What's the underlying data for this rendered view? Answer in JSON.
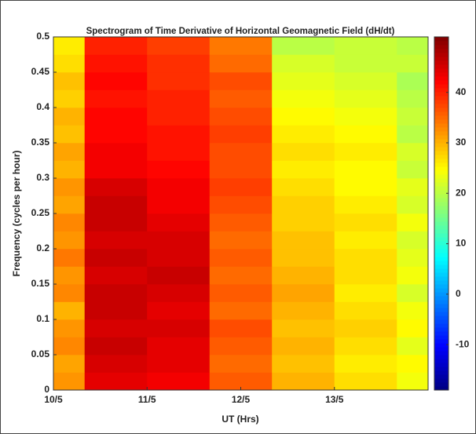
{
  "chart_data": {
    "type": "heatmap",
    "title": "Spectrogram of Time Derivative of Horizontal Geomagnetic Field (dH/dt)",
    "xlabel": "UT (Hrs)",
    "ylabel": "Frequency (cycles per hour)",
    "x_edges": [
      0,
      0.333,
      1,
      1.667,
      2.333,
      3,
      3.667,
      4
    ],
    "y_edges": [
      0,
      0.025,
      0.05,
      0.075,
      0.1,
      0.125,
      0.15,
      0.175,
      0.2,
      0.225,
      0.25,
      0.275,
      0.3,
      0.325,
      0.35,
      0.375,
      0.4,
      0.425,
      0.45,
      0.475,
      0.5
    ],
    "z": [
      [
        32,
        44,
        43,
        36,
        30,
        27,
        24
      ],
      [
        31,
        45,
        44,
        35,
        29,
        26,
        25
      ],
      [
        33,
        46,
        44,
        36,
        30,
        27,
        23
      ],
      [
        32,
        45,
        45,
        37,
        29,
        28,
        25
      ],
      [
        30,
        46,
        44,
        35,
        30,
        27,
        24
      ],
      [
        33,
        46,
        45,
        36,
        31,
        26,
        22
      ],
      [
        32,
        45,
        46,
        35,
        30,
        27,
        24
      ],
      [
        34,
        46,
        45,
        36,
        29,
        27,
        23
      ],
      [
        32,
        45,
        45,
        35,
        29,
        26,
        22
      ],
      [
        33,
        46,
        44,
        36,
        28,
        27,
        24
      ],
      [
        31,
        46,
        43,
        37,
        28,
        26,
        22
      ],
      [
        32,
        45,
        43,
        38,
        27,
        25,
        23
      ],
      [
        30,
        43,
        42,
        37,
        26,
        25,
        21
      ],
      [
        31,
        43,
        41,
        37,
        27,
        26,
        22
      ],
      [
        29,
        42,
        41,
        38,
        26,
        25,
        20
      ],
      [
        30,
        42,
        40,
        37,
        25,
        24,
        21
      ],
      [
        28,
        41,
        40,
        36,
        24,
        23,
        20
      ],
      [
        29,
        42,
        39,
        37,
        23,
        22,
        19
      ],
      [
        27,
        41,
        39,
        35,
        22,
        21,
        21
      ],
      [
        26,
        40,
        38,
        34,
        20,
        21,
        20
      ]
    ],
    "xlim": [
      0,
      4
    ],
    "xticks": [
      {
        "value": 0,
        "label": "10/5"
      },
      {
        "value": 1,
        "label": "11/5"
      },
      {
        "value": 2,
        "label": "12/5"
      },
      {
        "value": 3,
        "label": "13/5"
      }
    ],
    "ylim": [
      0,
      0.5
    ],
    "yticks": [
      0,
      0.05,
      0.1,
      0.15,
      0.2,
      0.25,
      0.3,
      0.35,
      0.4,
      0.45,
      0.5
    ],
    "colormap": "jet",
    "clim": [
      -19,
      51
    ],
    "cticks": [
      -10,
      0,
      10,
      20,
      30,
      40
    ]
  }
}
